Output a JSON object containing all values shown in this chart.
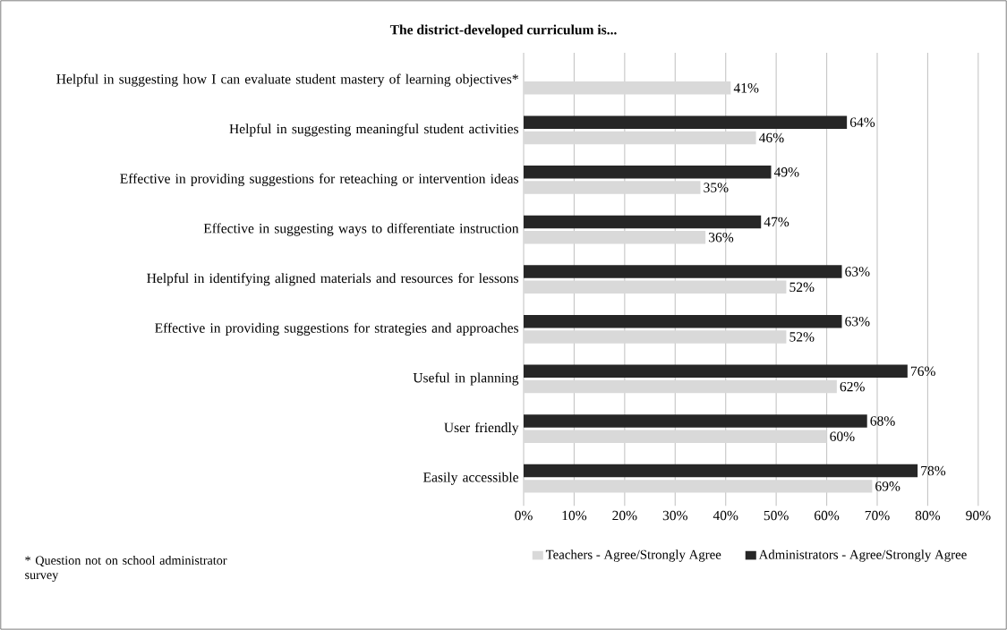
{
  "chart_data": {
    "type": "bar",
    "orientation": "horizontal",
    "title": "The district-developed curriculum is...",
    "categories": [
      "Helpful in suggesting how I can evaluate student mastery of learning objectives*",
      "Helpful in suggesting meaningful student activities",
      "Effective in providing suggestions for reteaching or intervention ideas",
      "Effective in suggesting ways to differentiate instruction",
      "Helpful in identifying aligned materials and resources for lessons",
      "Effective in providing suggestions for strategies and approaches",
      "Useful in planning",
      "User friendly",
      "Easily accessible"
    ],
    "series": [
      {
        "name": "Teachers - Agree/Strongly Agree",
        "color": "#d9d9d9",
        "values": [
          41,
          46,
          35,
          36,
          52,
          52,
          62,
          60,
          69
        ],
        "value_labels": [
          "41%",
          "46%",
          "35%",
          "36%",
          "52%",
          "52%",
          "62%",
          "60%",
          "69%"
        ]
      },
      {
        "name": "Administrators - Agree/Strongly Agree",
        "color": "#262626",
        "values": [
          null,
          64,
          49,
          47,
          63,
          63,
          76,
          68,
          78
        ],
        "value_labels": [
          null,
          "64%",
          "49%",
          "47%",
          "63%",
          "63%",
          "76%",
          "68%",
          "78%"
        ]
      }
    ],
    "xlim": [
      0,
      90
    ],
    "xticks": [
      {
        "value": 0,
        "label": "0%"
      },
      {
        "value": 10,
        "label": "10%"
      },
      {
        "value": 20,
        "label": "20%"
      },
      {
        "value": 30,
        "label": "30%"
      },
      {
        "value": 40,
        "label": "40%"
      },
      {
        "value": 50,
        "label": "50%"
      },
      {
        "value": 60,
        "label": "60%"
      },
      {
        "value": 70,
        "label": "70%"
      },
      {
        "value": 80,
        "label": "80%"
      },
      {
        "value": 90,
        "label": "90%"
      }
    ],
    "grid": "x",
    "legend": "bottom",
    "annotations": [
      "* Question not on school administrator survey"
    ]
  }
}
